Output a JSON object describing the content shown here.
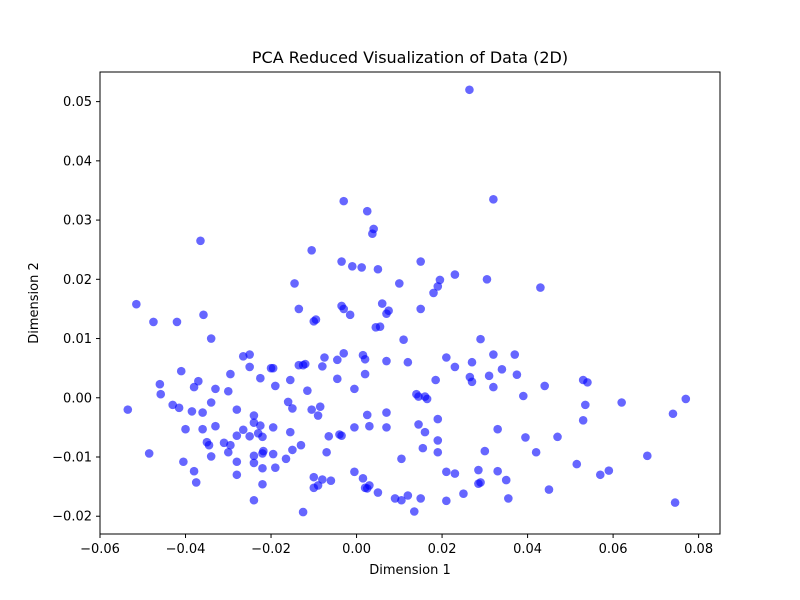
{
  "chart_data": {
    "type": "scatter",
    "title": "PCA Reduced Visualization of Data (2D)",
    "xlabel": "Dimension 1",
    "ylabel": "Dimension 2",
    "xlim": [
      -0.06,
      0.085
    ],
    "ylim": [
      -0.023,
      0.055
    ],
    "xticks": [
      -0.06,
      -0.04,
      -0.02,
      0.0,
      0.02,
      0.04,
      0.06,
      0.08
    ],
    "xtick_labels": [
      "−0.06",
      "−0.04",
      "−0.02",
      "0.00",
      "0.02",
      "0.04",
      "0.06",
      "0.08"
    ],
    "yticks": [
      -0.02,
      -0.01,
      0.0,
      0.01,
      0.02,
      0.03,
      0.04,
      0.05
    ],
    "ytick_labels": [
      "−0.02",
      "−0.01",
      "0.00",
      "0.01",
      "0.02",
      "0.03",
      "0.04",
      "0.05"
    ],
    "grid": false,
    "marker_color": "#0000ff",
    "marker_opacity": 0.6,
    "points": [
      [
        0.0264,
        0.052
      ],
      [
        0.032,
        0.0335
      ],
      [
        -0.003,
        0.0332
      ],
      [
        0.0025,
        0.0315
      ],
      [
        0.004,
        0.0285
      ],
      [
        0.0037,
        0.0277
      ],
      [
        -0.0365,
        0.0265
      ],
      [
        -0.0105,
        0.0249
      ],
      [
        -0.0035,
        0.023
      ],
      [
        0.015,
        0.023
      ],
      [
        -0.001,
        0.0222
      ],
      [
        0.0012,
        0.022
      ],
      [
        0.005,
        0.0217
      ],
      [
        0.023,
        0.0208
      ],
      [
        0.0305,
        0.02
      ],
      [
        0.0195,
        0.0199
      ],
      [
        -0.0145,
        0.0193
      ],
      [
        0.01,
        0.0193
      ],
      [
        0.019,
        0.0188
      ],
      [
        0.043,
        0.0186
      ],
      [
        0.018,
        0.0177
      ],
      [
        -0.0515,
        0.0158
      ],
      [
        0.006,
        0.0159
      ],
      [
        -0.0035,
        0.0155
      ],
      [
        -0.003,
        0.015
      ],
      [
        0.015,
        0.015
      ],
      [
        -0.0135,
        0.015
      ],
      [
        0.007,
        0.0142
      ],
      [
        -0.0015,
        0.014
      ],
      [
        -0.0358,
        0.014
      ],
      [
        0.0075,
        0.0147
      ],
      [
        -0.0095,
        0.0132
      ],
      [
        -0.01,
        0.0129
      ],
      [
        -0.0475,
        0.0128
      ],
      [
        -0.042,
        0.0128
      ],
      [
        0.0055,
        0.012
      ],
      [
        0.0045,
        0.0119
      ],
      [
        -0.034,
        0.01
      ],
      [
        0.011,
        0.0098
      ],
      [
        0.029,
        0.0099
      ],
      [
        -0.025,
        0.0073
      ],
      [
        -0.0265,
        0.007
      ],
      [
        0.0015,
        0.0072
      ],
      [
        -0.003,
        0.0075
      ],
      [
        0.037,
        0.0073
      ],
      [
        0.032,
        0.0073
      ],
      [
        0.021,
        0.0068
      ],
      [
        -0.0075,
        0.0068
      ],
      [
        0.002,
        0.0065
      ],
      [
        -0.0045,
        0.0064
      ],
      [
        0.007,
        0.0062
      ],
      [
        0.012,
        0.006
      ],
      [
        0.027,
        0.006
      ],
      [
        -0.0195,
        0.005
      ],
      [
        -0.02,
        0.005
      ],
      [
        -0.012,
        0.0057
      ],
      [
        -0.0125,
        0.0055
      ],
      [
        -0.0135,
        0.0055
      ],
      [
        -0.008,
        0.0053
      ],
      [
        -0.025,
        0.0052
      ],
      [
        0.023,
        0.0052
      ],
      [
        0.034,
        0.0048
      ],
      [
        -0.041,
        0.0045
      ],
      [
        0.002,
        0.004
      ],
      [
        0.031,
        0.0037
      ],
      [
        0.0375,
        0.0039
      ],
      [
        0.0265,
        0.0035
      ],
      [
        -0.0295,
        0.004
      ],
      [
        0.0185,
        0.003
      ],
      [
        -0.0045,
        0.0032
      ],
      [
        -0.0225,
        0.0033
      ],
      [
        -0.0155,
        0.003
      ],
      [
        -0.037,
        0.0028
      ],
      [
        0.027,
        0.0027
      ],
      [
        0.053,
        0.003
      ],
      [
        0.054,
        0.0026
      ],
      [
        -0.046,
        0.0023
      ],
      [
        0.044,
        0.002
      ],
      [
        -0.019,
        0.002
      ],
      [
        -0.038,
        0.0018
      ],
      [
        -0.033,
        0.0015
      ],
      [
        -0.0005,
        0.0015
      ],
      [
        0.032,
        0.0018
      ],
      [
        -0.0115,
        0.0012
      ],
      [
        -0.03,
        0.0011
      ],
      [
        -0.0458,
        0.0006
      ],
      [
        0.014,
        0.0006
      ],
      [
        0.0145,
        0.0002
      ],
      [
        0.016,
        0.0002
      ],
      [
        0.0165,
        -0.0002
      ],
      [
        0.039,
        0.0003
      ],
      [
        0.077,
        -0.0002
      ],
      [
        0.062,
        -0.0008
      ],
      [
        -0.016,
        -0.0007
      ],
      [
        -0.034,
        -0.0008
      ],
      [
        0.0535,
        -0.0012
      ],
      [
        -0.043,
        -0.0012
      ],
      [
        -0.0415,
        -0.0017
      ],
      [
        -0.0085,
        -0.0015
      ],
      [
        -0.015,
        -0.0018
      ],
      [
        -0.0535,
        -0.002
      ],
      [
        -0.028,
        -0.002
      ],
      [
        -0.0105,
        -0.002
      ],
      [
        -0.0385,
        -0.0023
      ],
      [
        -0.036,
        -0.0025
      ],
      [
        0.007,
        -0.0025
      ],
      [
        0.074,
        -0.0027
      ],
      [
        0.0025,
        -0.0029
      ],
      [
        -0.024,
        -0.003
      ],
      [
        -0.009,
        -0.003
      ],
      [
        0.019,
        -0.0036
      ],
      [
        0.053,
        -0.0038
      ],
      [
        -0.024,
        -0.0042
      ],
      [
        0.0145,
        -0.0045
      ],
      [
        -0.0225,
        -0.0047
      ],
      [
        0.003,
        -0.0048
      ],
      [
        -0.033,
        -0.0048
      ],
      [
        -0.0005,
        -0.005
      ],
      [
        -0.0195,
        -0.005
      ],
      [
        0.007,
        -0.005
      ],
      [
        -0.04,
        -0.0053
      ],
      [
        -0.036,
        -0.0053
      ],
      [
        0.033,
        -0.0053
      ],
      [
        -0.0265,
        -0.0054
      ],
      [
        -0.0155,
        -0.0058
      ],
      [
        0.016,
        -0.0058
      ],
      [
        -0.023,
        -0.006
      ],
      [
        -0.004,
        -0.0062
      ],
      [
        -0.028,
        -0.0064
      ],
      [
        -0.0035,
        -0.0064
      ],
      [
        -0.0065,
        -0.0065
      ],
      [
        -0.025,
        -0.0065
      ],
      [
        -0.022,
        -0.0066
      ],
      [
        0.047,
        -0.0066
      ],
      [
        0.0395,
        -0.0067
      ],
      [
        0.019,
        -0.0072
      ],
      [
        -0.035,
        -0.0075
      ],
      [
        -0.031,
        -0.0076
      ],
      [
        -0.0345,
        -0.008
      ],
      [
        -0.0295,
        -0.008
      ],
      [
        -0.013,
        -0.008
      ],
      [
        0.0155,
        -0.0085
      ],
      [
        -0.015,
        -0.0088
      ],
      [
        -0.0218,
        -0.009
      ],
      [
        0.03,
        -0.009
      ],
      [
        -0.03,
        -0.0092
      ],
      [
        -0.007,
        -0.0092
      ],
      [
        0.019,
        -0.0092
      ],
      [
        -0.022,
        -0.0094
      ],
      [
        -0.0485,
        -0.0094
      ],
      [
        0.042,
        -0.0092
      ],
      [
        -0.0195,
        -0.0095
      ],
      [
        0.068,
        -0.0098
      ],
      [
        -0.024,
        -0.0098
      ],
      [
        -0.034,
        -0.0099
      ],
      [
        -0.0165,
        -0.0103
      ],
      [
        0.0105,
        -0.0103
      ],
      [
        -0.0405,
        -0.0108
      ],
      [
        -0.028,
        -0.0108
      ],
      [
        -0.024,
        -0.011
      ],
      [
        0.0515,
        -0.0112
      ],
      [
        -0.019,
        -0.0118
      ],
      [
        -0.022,
        -0.0119
      ],
      [
        -0.038,
        -0.0124
      ],
      [
        0.059,
        -0.0123
      ],
      [
        0.021,
        -0.0125
      ],
      [
        -0.0005,
        -0.0125
      ],
      [
        0.0285,
        -0.0122
      ],
      [
        0.033,
        -0.0124
      ],
      [
        0.023,
        -0.0128
      ],
      [
        -0.028,
        -0.013
      ],
      [
        0.057,
        -0.013
      ],
      [
        -0.01,
        -0.0134
      ],
      [
        0.035,
        -0.0139
      ],
      [
        -0.008,
        -0.0138
      ],
      [
        0.0015,
        -0.0136
      ],
      [
        -0.006,
        -0.014
      ],
      [
        0.029,
        -0.0143
      ],
      [
        0.0285,
        -0.0145
      ],
      [
        -0.0375,
        -0.0143
      ],
      [
        -0.022,
        -0.0146
      ],
      [
        0.003,
        -0.0148
      ],
      [
        -0.009,
        -0.0148
      ],
      [
        0.002,
        -0.0152
      ],
      [
        -0.01,
        -0.0152
      ],
      [
        0.0025,
        -0.0153
      ],
      [
        0.045,
        -0.0155
      ],
      [
        0.005,
        -0.016
      ],
      [
        0.025,
        -0.0162
      ],
      [
        0.012,
        -0.0165
      ],
      [
        0.009,
        -0.017
      ],
      [
        0.015,
        -0.017
      ],
      [
        0.0355,
        -0.017
      ],
      [
        -0.024,
        -0.0173
      ],
      [
        0.0105,
        -0.0173
      ],
      [
        0.021,
        -0.0174
      ],
      [
        0.0745,
        -0.0177
      ],
      [
        0.0135,
        -0.0192
      ],
      [
        -0.0125,
        -0.0193
      ]
    ]
  }
}
